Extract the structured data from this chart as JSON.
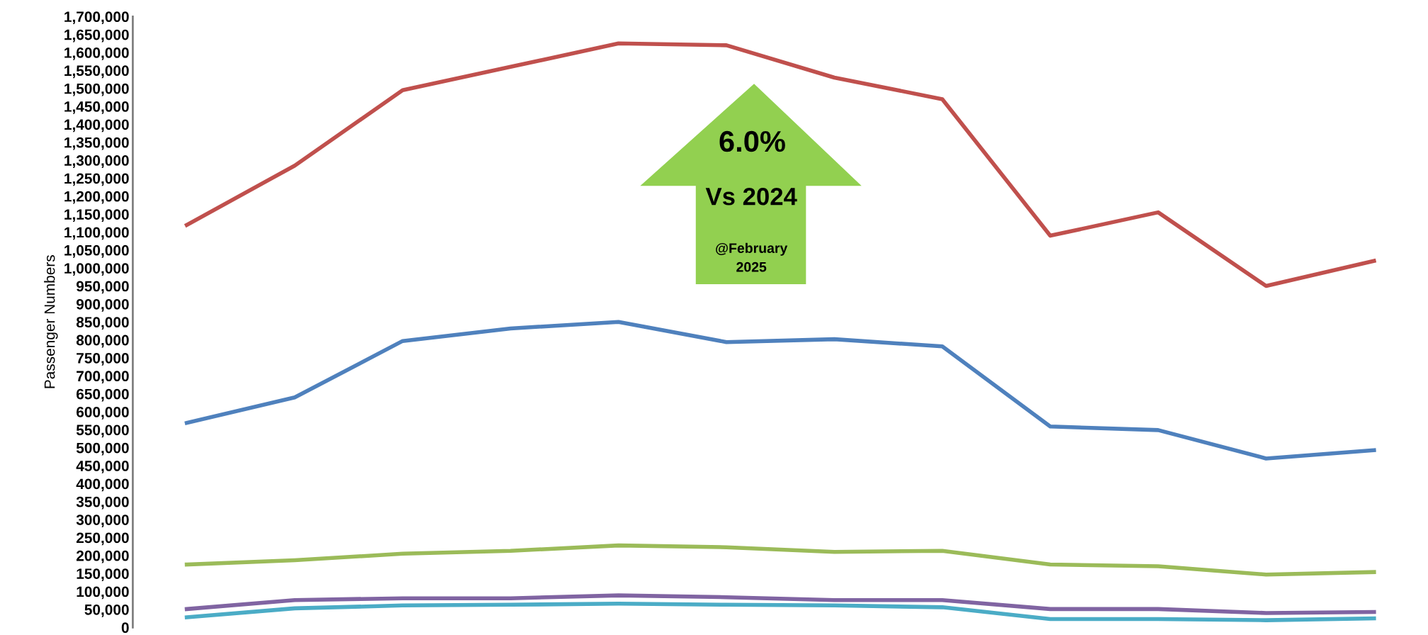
{
  "chart_data": {
    "type": "line",
    "ylabel": "Passenger Numbers",
    "categories": [
      null,
      null,
      null,
      null,
      null,
      null,
      null,
      null,
      null,
      null,
      null,
      null
    ],
    "series": [
      {
        "color": "#c0504d",
        "values": [
          1120000,
          1285000,
          1495000,
          1560000,
          1625000,
          1620000,
          1530000,
          1470000,
          1090000,
          1155000,
          950000,
          1020000
        ]
      },
      {
        "color": "#4f81bd",
        "values": [
          569000,
          640000,
          797000,
          832000,
          850000,
          794000,
          802000,
          782000,
          559000,
          549000,
          470000,
          493000
        ]
      },
      {
        "color": "#9bbb59",
        "values": [
          175000,
          187000,
          205000,
          213000,
          228000,
          223000,
          210000,
          213000,
          175000,
          170000,
          147000,
          154000
        ]
      },
      {
        "color": "#8064a2",
        "values": [
          51000,
          76000,
          81000,
          81000,
          89000,
          84000,
          76000,
          76000,
          51000,
          51000,
          40000,
          43000
        ]
      },
      {
        "color": "#4bacc6",
        "values": [
          28000,
          53000,
          61000,
          63000,
          66000,
          63000,
          61000,
          56000,
          23000,
          23000,
          20000,
          25000
        ]
      }
    ],
    "ylim": [
      0,
      1700000
    ],
    "yticks": [
      {
        "value": 0,
        "label": "0"
      },
      {
        "value": 50000,
        "label": "50,000"
      },
      {
        "value": 100000,
        "label": "100,000"
      },
      {
        "value": 150000,
        "label": "150,000"
      },
      {
        "value": 200000,
        "label": "200,000"
      },
      {
        "value": 250000,
        "label": "250,000"
      },
      {
        "value": 300000,
        "label": "300,000"
      },
      {
        "value": 350000,
        "label": "350,000"
      },
      {
        "value": 400000,
        "label": "400,000"
      },
      {
        "value": 450000,
        "label": "450,000"
      },
      {
        "value": 500000,
        "label": "500,000"
      },
      {
        "value": 550000,
        "label": "550,000"
      },
      {
        "value": 600000,
        "label": "600,000"
      },
      {
        "value": 650000,
        "label": "650,000"
      },
      {
        "value": 700000,
        "label": "700,000"
      },
      {
        "value": 750000,
        "label": "750,000"
      },
      {
        "value": 800000,
        "label": "800,000"
      },
      {
        "value": 850000,
        "label": "850,000"
      },
      {
        "value": 900000,
        "label": "900,000"
      },
      {
        "value": 950000,
        "label": "950,000"
      },
      {
        "value": 1000000,
        "label": "1,000,000"
      },
      {
        "value": 1050000,
        "label": "1,050,000"
      },
      {
        "value": 1100000,
        "label": "1,100,000"
      },
      {
        "value": 1150000,
        "label": "1,150,000"
      },
      {
        "value": 1200000,
        "label": "1,200,000"
      },
      {
        "value": 1250000,
        "label": "1,250,000"
      },
      {
        "value": 1300000,
        "label": "1,300,000"
      },
      {
        "value": 1350000,
        "label": "1,350,000"
      },
      {
        "value": 1400000,
        "label": "1,400,000"
      },
      {
        "value": 1450000,
        "label": "1,450,000"
      },
      {
        "value": 1500000,
        "label": "1,500,000"
      },
      {
        "value": 1550000,
        "label": "1,550,000"
      },
      {
        "value": 1600000,
        "label": "1,600,000"
      },
      {
        "value": 1650000,
        "label": "1,650,000"
      },
      {
        "value": 1700000,
        "label": "1,700,000"
      }
    ],
    "tick_labels": "y",
    "grid": false,
    "legend": false,
    "marker": "none",
    "line_style": "solid",
    "annotations": [
      "6.0%",
      "Vs 2024",
      "@February\n2025"
    ]
  }
}
